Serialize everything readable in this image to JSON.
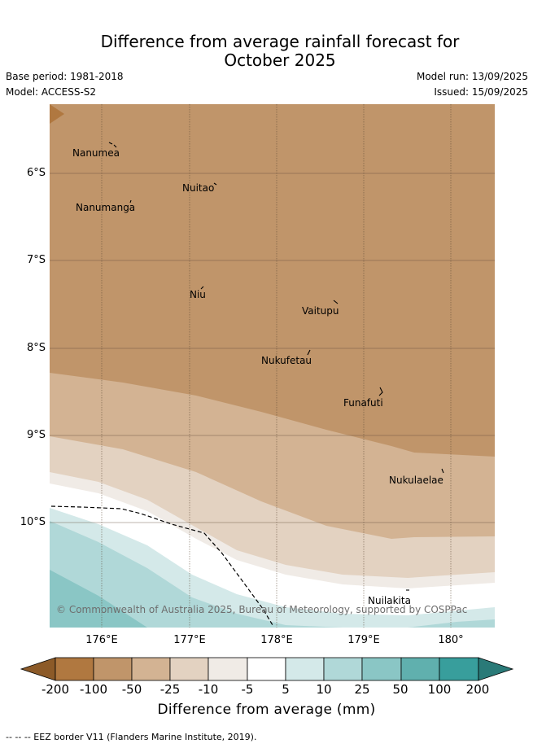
{
  "header": {
    "title_line1": "Difference from average rainfall forecast for",
    "title_line2": "October 2025",
    "base_period": "Base period: 1981-2018",
    "model": "Model: ACCESS-S2",
    "model_run": "Model run: 13/09/2025",
    "issued": "Issued: 15/09/2025"
  },
  "map": {
    "places": [
      {
        "name": "Nanumea"
      },
      {
        "name": "Nuitao"
      },
      {
        "name": "Nanumanga"
      },
      {
        "name": "Niu"
      },
      {
        "name": "Vaitupu"
      },
      {
        "name": "Nukufetau"
      },
      {
        "name": "Funafuti"
      },
      {
        "name": "Nukulaelae"
      },
      {
        "name": "Nuilakita"
      }
    ],
    "y_ticks": [
      "6°S",
      "7°S",
      "8°S",
      "9°S",
      "10°S"
    ],
    "x_ticks": [
      "176°E",
      "177°E",
      "178°E",
      "179°E",
      "180°"
    ],
    "copyright": "© Commonwealth of Australia 2025, Bureau of Meteorology, supported by COSPPac"
  },
  "colorbar": {
    "labels": [
      "-200",
      "-100",
      "-50",
      "-25",
      "-10",
      "-5",
      "5",
      "10",
      "25",
      "50",
      "100",
      "200"
    ],
    "colors": [
      "#8c5a28",
      "#b07840",
      "#c0956a",
      "#d3b393",
      "#e3d2c1",
      "#f0ebe6",
      "#ffffff",
      "#d4e9e9",
      "#b0d8d8",
      "#8ac6c5",
      "#60b0ae",
      "#389e9c",
      "#2a7a78"
    ],
    "title": "Difference from average (mm)"
  },
  "footnote": "-- -- -- EEZ border V11 (Flanders Marine Institute, 2019)."
}
